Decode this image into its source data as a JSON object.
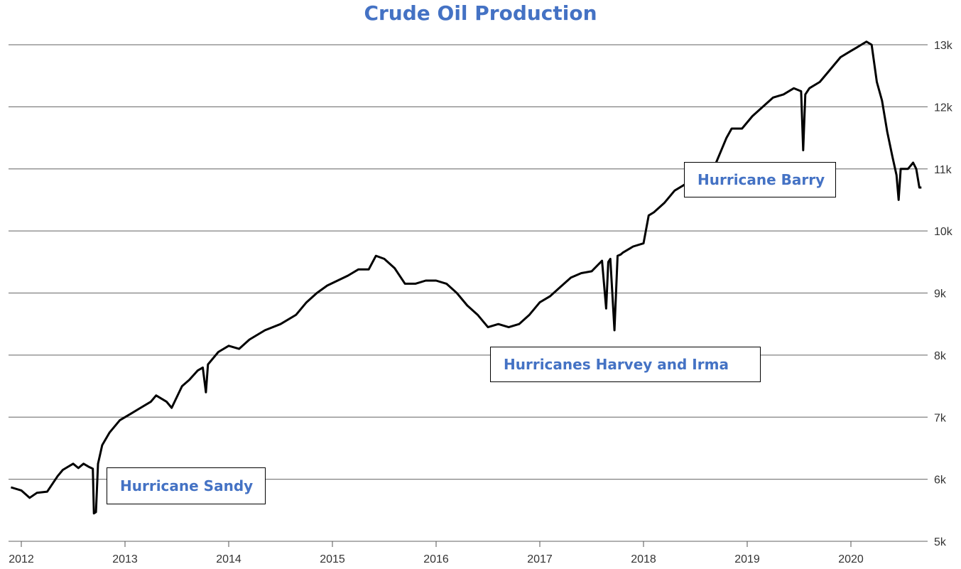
{
  "chart_data": {
    "type": "line",
    "title": "Crude Oil Production",
    "xlabel": "",
    "ylabel": "",
    "ylim": [
      5000,
      13000
    ],
    "xlim": [
      2011.9,
      2020.75
    ],
    "y_ticks": [
      5000,
      6000,
      7000,
      8000,
      9000,
      10000,
      11000,
      12000,
      13000
    ],
    "y_tick_labels": [
      "5k",
      "6k",
      "7k",
      "8k",
      "9k",
      "10k",
      "11k",
      "12k",
      "13k"
    ],
    "x_ticks": [
      2012,
      2013,
      2014,
      2015,
      2016,
      2017,
      2018,
      2019,
      2020
    ],
    "x_tick_labels": [
      "2012",
      "2013",
      "2014",
      "2015",
      "2016",
      "2017",
      "2018",
      "2019",
      "2020"
    ],
    "grid": "horizontal",
    "series": [
      {
        "color": "#000000",
        "x": [
          2011.9,
          2012.0,
          2012.08,
          2012.15,
          2012.25,
          2012.35,
          2012.4,
          2012.45,
          2012.5,
          2012.55,
          2012.6,
          2012.65,
          2012.69,
          2012.7,
          2012.72,
          2012.74,
          2012.78,
          2012.85,
          2012.95,
          2013.05,
          2013.15,
          2013.25,
          2013.3,
          2013.4,
          2013.45,
          2013.55,
          2013.62,
          2013.7,
          2013.75,
          2013.78,
          2013.8,
          2013.9,
          2014.0,
          2014.1,
          2014.2,
          2014.35,
          2014.5,
          2014.65,
          2014.75,
          2014.85,
          2014.95,
          2015.05,
          2015.15,
          2015.25,
          2015.35,
          2015.42,
          2015.5,
          2015.6,
          2015.7,
          2015.8,
          2015.9,
          2016.0,
          2016.1,
          2016.2,
          2016.3,
          2016.4,
          2016.5,
          2016.6,
          2016.7,
          2016.8,
          2016.9,
          2017.0,
          2017.1,
          2017.2,
          2017.3,
          2017.4,
          2017.5,
          2017.6,
          2017.64,
          2017.66,
          2017.68,
          2017.72,
          2017.75,
          2017.78,
          2017.8,
          2017.9,
          2018.0,
          2018.05,
          2018.1,
          2018.2,
          2018.3,
          2018.4,
          2018.5,
          2018.6,
          2018.7,
          2018.8,
          2018.85,
          2018.95,
          2019.05,
          2019.15,
          2019.25,
          2019.35,
          2019.45,
          2019.52,
          2019.54,
          2019.56,
          2019.6,
          2019.7,
          2019.8,
          2019.9,
          2020.0,
          2020.05,
          2020.1,
          2020.15,
          2020.2,
          2020.25,
          2020.3,
          2020.35,
          2020.4,
          2020.44,
          2020.46,
          2020.48,
          2020.55,
          2020.6,
          2020.63,
          2020.66,
          2020.68
        ],
        "values": [
          5870,
          5820,
          5700,
          5780,
          5800,
          6050,
          6150,
          6200,
          6250,
          6180,
          6250,
          6200,
          6170,
          5450,
          5470,
          6250,
          6550,
          6750,
          6950,
          7050,
          7150,
          7250,
          7350,
          7250,
          7150,
          7500,
          7600,
          7750,
          7800,
          7400,
          7850,
          8050,
          8150,
          8100,
          8250,
          8400,
          8500,
          8650,
          8850,
          9000,
          9120,
          9200,
          9280,
          9380,
          9380,
          9600,
          9550,
          9400,
          9150,
          9150,
          9200,
          9200,
          9150,
          9000,
          8800,
          8650,
          8450,
          8500,
          8450,
          8500,
          8650,
          8850,
          8950,
          9100,
          9250,
          9320,
          9350,
          9520,
          8750,
          9500,
          9550,
          8400,
          9600,
          9620,
          9650,
          9750,
          9800,
          10250,
          10300,
          10450,
          10650,
          10750,
          10900,
          11000,
          11100,
          11500,
          11650,
          11650,
          11850,
          12000,
          12150,
          12200,
          12300,
          12250,
          11300,
          12200,
          12300,
          12400,
          12600,
          12800,
          12900,
          12950,
          13000,
          13050,
          13000,
          12400,
          12100,
          11600,
          11200,
          10900,
          10500,
          11000,
          11000,
          11100,
          11000,
          10700,
          10700
        ]
      }
    ],
    "annotations": [
      {
        "text": "Hurricane Sandy",
        "x": 2012.72
      },
      {
        "text": "Hurricanes Harvey and Irma",
        "x": 2017.72
      },
      {
        "text": "Hurricane Barry",
        "x": 2019.54
      }
    ]
  }
}
